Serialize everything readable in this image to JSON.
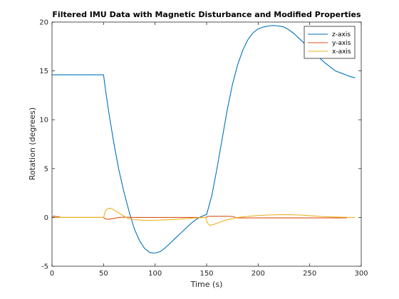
{
  "chart_data": {
    "type": "line",
    "title": "Filtered IMU Data with Magnetic Disturbance and Modified Properties",
    "xlabel": "Time (s)",
    "ylabel": "Rotation (degrees)",
    "xlim": [
      0,
      300
    ],
    "ylim": [
      -5,
      20
    ],
    "xticks": [
      "0",
      "50",
      "100",
      "150",
      "200",
      "250",
      "300"
    ],
    "yticks": [
      "-5",
      "0",
      "5",
      "10",
      "15",
      "20"
    ],
    "grid": false,
    "legend_position": "top-right",
    "series": [
      {
        "name": "z-axis",
        "color": "#0072BD",
        "x": [
          0,
          50,
          52,
          55,
          60,
          65,
          70,
          75,
          80,
          85,
          90,
          95,
          100,
          105,
          110,
          115,
          120,
          125,
          130,
          135,
          140,
          145,
          150,
          155,
          160,
          165,
          170,
          175,
          180,
          185,
          190,
          195,
          200,
          205,
          210,
          215,
          220,
          225,
          230,
          235,
          240,
          245,
          250,
          255,
          260,
          265,
          270,
          275,
          280,
          285,
          290,
          294
        ],
        "y": [
          14.6,
          14.6,
          13.0,
          10.8,
          7.6,
          4.8,
          2.5,
          0.5,
          -1.2,
          -2.4,
          -3.2,
          -3.6,
          -3.65,
          -3.5,
          -3.1,
          -2.6,
          -2.1,
          -1.6,
          -1.1,
          -0.6,
          -0.2,
          0.1,
          0.3,
          2.2,
          5.0,
          8.0,
          11.0,
          13.6,
          15.6,
          17.1,
          18.2,
          18.9,
          19.3,
          19.5,
          19.6,
          19.65,
          19.6,
          19.5,
          19.2,
          18.8,
          18.3,
          17.8,
          17.3,
          16.8,
          16.3,
          15.8,
          15.4,
          15.0,
          14.8,
          14.6,
          14.4,
          14.3
        ]
      },
      {
        "name": "y-axis",
        "color": "#D95319",
        "x": [
          0,
          2,
          4,
          6,
          8,
          10,
          50,
          52,
          55,
          60,
          65,
          70,
          80,
          100,
          120,
          140,
          149,
          151,
          155,
          160,
          170,
          175,
          178,
          180,
          200,
          220,
          240,
          260,
          280,
          286
        ],
        "y": [
          0.0,
          0.15,
          0.05,
          0.1,
          0.0,
          0.0,
          0.0,
          -0.15,
          -0.2,
          -0.1,
          0.0,
          0.02,
          0.0,
          0.0,
          0.0,
          0.0,
          0.0,
          0.1,
          0.12,
          0.12,
          0.12,
          0.1,
          0.0,
          -0.05,
          -0.05,
          -0.05,
          -0.05,
          -0.05,
          -0.05,
          -0.05
        ]
      },
      {
        "name": "x-axis",
        "color": "#EDB120",
        "x": [
          0,
          50,
          52,
          55,
          58,
          61,
          64,
          68,
          72,
          75,
          78,
          82,
          90,
          100,
          120,
          140,
          149,
          151,
          153,
          156,
          160,
          165,
          170,
          180,
          190,
          200,
          210,
          220,
          230,
          240,
          250,
          260,
          270,
          280,
          290,
          294
        ],
        "y": [
          0.0,
          0.0,
          0.7,
          0.95,
          0.9,
          0.7,
          0.5,
          0.25,
          0.0,
          -0.15,
          -0.2,
          -0.25,
          -0.3,
          -0.3,
          -0.2,
          -0.05,
          0.0,
          -0.6,
          -0.8,
          -0.75,
          -0.6,
          -0.4,
          -0.25,
          0.0,
          0.1,
          0.2,
          0.25,
          0.28,
          0.28,
          0.25,
          0.18,
          0.1,
          0.05,
          0.02,
          0.0,
          0.0
        ]
      }
    ]
  }
}
